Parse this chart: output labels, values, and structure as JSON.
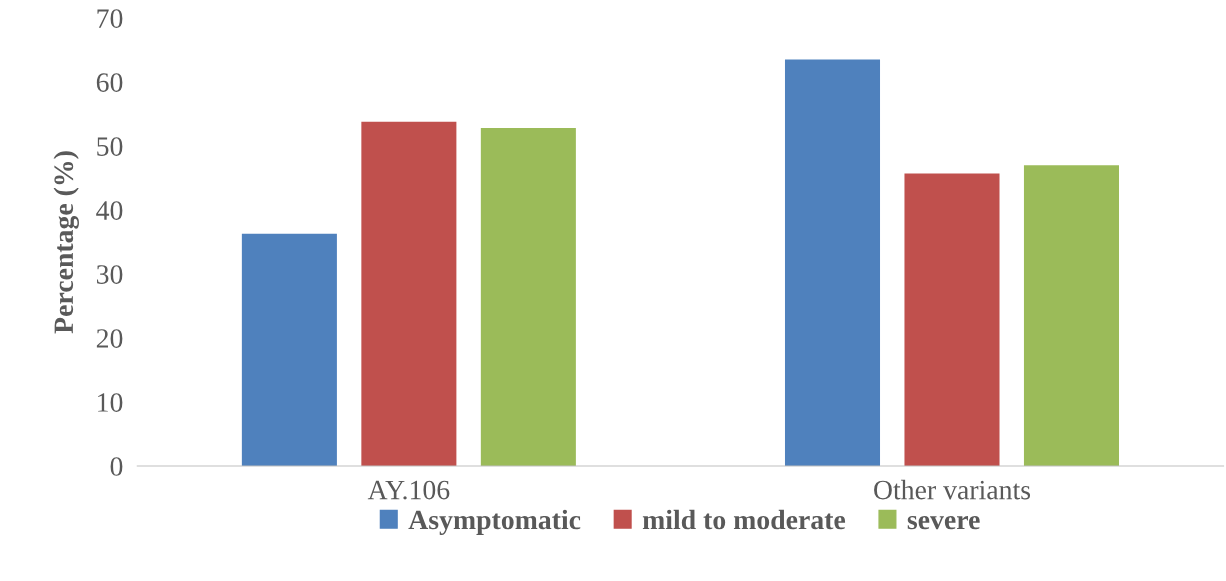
{
  "chart_data": {
    "type": "bar",
    "ylabel": "Percentage (%)",
    "categories": [
      "AY.106",
      "Other variants"
    ],
    "series": [
      {
        "name": "Asymptomatic",
        "color": "#4f81bd",
        "values": [
          36.3,
          63.5
        ]
      },
      {
        "name": "mild to moderate",
        "color": "#c0504d",
        "values": [
          53.8,
          45.7
        ]
      },
      {
        "name": "severe",
        "color": "#9bbb59",
        "values": [
          52.8,
          47.0
        ]
      }
    ],
    "ylim": [
      0,
      70
    ],
    "yticks": [
      0,
      10,
      20,
      30,
      40,
      50,
      60,
      70
    ],
    "grid": false,
    "legend": "bottom"
  }
}
